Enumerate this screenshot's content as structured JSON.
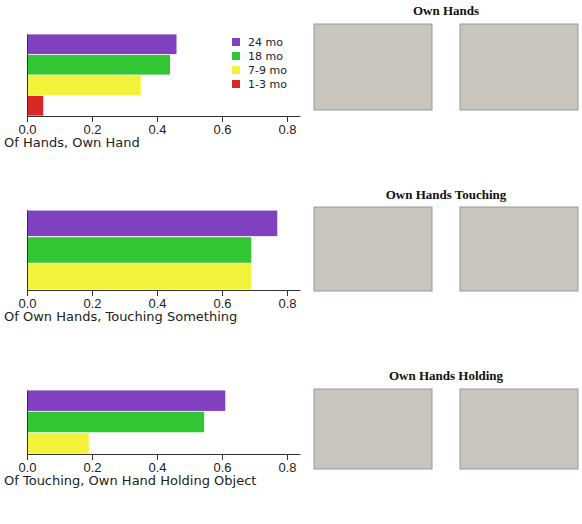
{
  "chart_data": [
    {
      "type": "bar",
      "orientation": "horizontal",
      "title": "Own Hands",
      "xlabel": "Of Hands, Own Hand",
      "categories": [
        "24 mo",
        "18 mo",
        "7-9 mo",
        "1-3 mo"
      ],
      "values": [
        0.46,
        0.44,
        0.35,
        0.05
      ],
      "colors": [
        "#8040c0",
        "#33c633",
        "#f2f23a",
        "#d92626"
      ],
      "xlim": [
        0,
        0.84
      ],
      "xticks": [
        {
          "value": 0,
          "label": "0.0"
        },
        0.2,
        0.4,
        0.6,
        0.8
      ],
      "legend": "upper right",
      "tick_labels": "x"
    },
    {
      "type": "bar",
      "orientation": "horizontal",
      "title": "Own Hands Touching",
      "xlabel": "Of Own Hands, Touching Something",
      "categories": [
        null,
        null,
        null
      ],
      "values": [
        0.77,
        0.69,
        0.69
      ],
      "colors": [
        "#8040c0",
        "#33c633",
        "#f2f23a"
      ],
      "xlim": [
        0,
        0.84
      ],
      "xticks": [
        {
          "value": 0,
          "label": "0.0"
        },
        0.2,
        0.4,
        0.6,
        0.8
      ],
      "tick_labels": "x"
    },
    {
      "type": "bar",
      "orientation": "horizontal",
      "title": "Own Hands Holding",
      "xlabel": "Of Touching, Own Hand Holding Object",
      "categories": [
        null,
        null,
        null
      ],
      "values": [
        0.61,
        0.545,
        0.19
      ],
      "colors": [
        "#8040c0",
        "#33c633",
        "#f2f23a"
      ],
      "xlim": [
        0,
        0.84
      ],
      "xticks": [
        {
          "value": 0,
          "label": "0.0"
        },
        0.2,
        0.4,
        0.6,
        0.8
      ],
      "tick_labels": "x"
    }
  ]
}
